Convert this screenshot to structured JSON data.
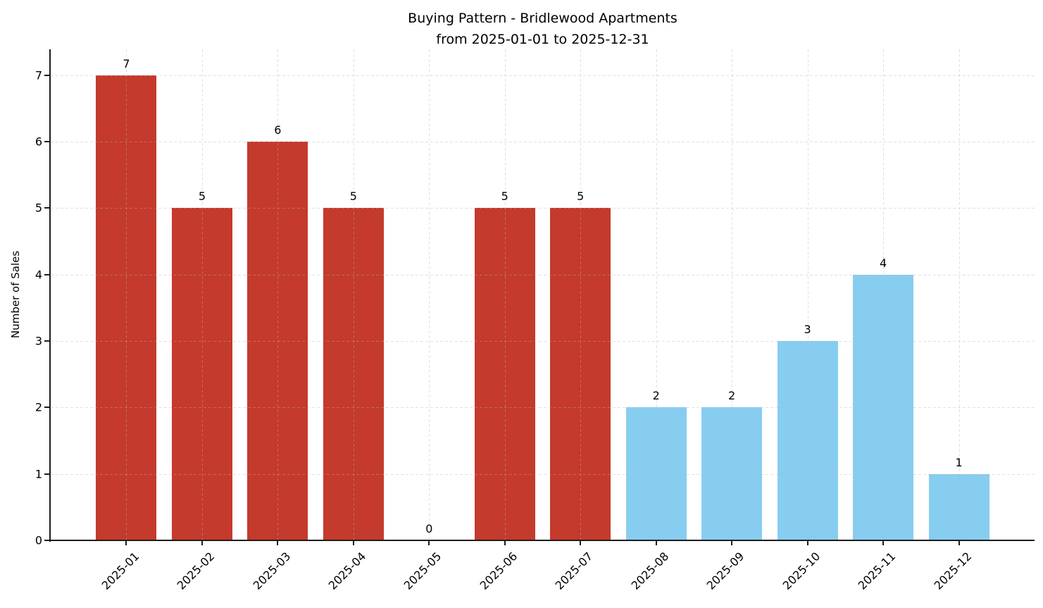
{
  "chart_data": {
    "type": "bar",
    "title": "Buying Pattern - Bridlewood Apartments",
    "subtitle": "from 2025-01-01 to 2025-12-31",
    "xlabel": "",
    "ylabel": "Number of Sales",
    "categories": [
      "2025-01",
      "2025-02",
      "2025-03",
      "2025-04",
      "2025-05",
      "2025-06",
      "2025-07",
      "2025-08",
      "2025-09",
      "2025-10",
      "2025-11",
      "2025-12"
    ],
    "values": [
      7,
      5,
      6,
      5,
      0,
      5,
      5,
      2,
      2,
      3,
      4,
      1
    ],
    "value_labels": [
      "7",
      "5",
      "6",
      "5",
      "0",
      "5",
      "5",
      "2",
      "2",
      "3",
      "4",
      "1"
    ],
    "bar_colors": [
      "#C43A2C",
      "#C43A2C",
      "#C43A2C",
      "#C43A2C",
      "#C43A2C",
      "#C43A2C",
      "#C43A2C",
      "#87CDF0",
      "#87CDF0",
      "#87CDF0",
      "#87CDF0",
      "#87CDF0"
    ],
    "palette": {
      "red": "#C43A2C",
      "light_blue": "#87CDF0"
    },
    "yticks": [
      "0",
      "1",
      "2",
      "3",
      "4",
      "5",
      "6",
      "7"
    ],
    "ylim": [
      0,
      7.39
    ],
    "grid": true,
    "grid_style": "dashed",
    "grid_color": "#b4b4b4",
    "axis_color": "#1c1c1c",
    "legend": "none"
  }
}
